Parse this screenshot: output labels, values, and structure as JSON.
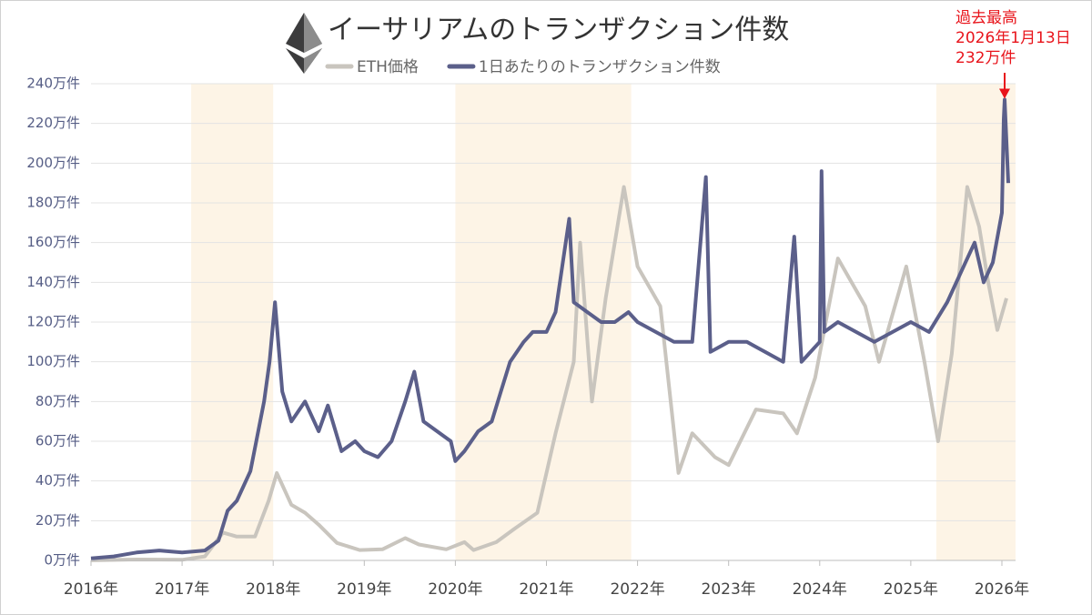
{
  "chart_data": {
    "type": "line",
    "title": "イーサリアムのトランザクション件数",
    "xlim": [
      2016,
      2026.15
    ],
    "xticks": [
      {
        "value": 2016,
        "label": "2016年"
      },
      {
        "value": 2017,
        "label": "2017年"
      },
      {
        "value": 2018,
        "label": "2018年"
      },
      {
        "value": 2019,
        "label": "2019年"
      },
      {
        "value": 2020,
        "label": "2020年"
      },
      {
        "value": 2021,
        "label": "2021年"
      },
      {
        "value": 2022,
        "label": "2022年"
      },
      {
        "value": 2023,
        "label": "2023年"
      },
      {
        "value": 2024,
        "label": "2024年"
      },
      {
        "value": 2025,
        "label": "2025年"
      },
      {
        "value": 2026,
        "label": "2026年"
      }
    ],
    "ylim": [
      0,
      240
    ],
    "yticks": [
      {
        "value": 0,
        "label": "0万件"
      },
      {
        "value": 20,
        "label": "20万件"
      },
      {
        "value": 40,
        "label": "40万件"
      },
      {
        "value": 60,
        "label": "60万件"
      },
      {
        "value": 80,
        "label": "80万件"
      },
      {
        "value": 100,
        "label": "100万件"
      },
      {
        "value": 120,
        "label": "120万件"
      },
      {
        "value": 140,
        "label": "140万件"
      },
      {
        "value": 160,
        "label": "160万件"
      },
      {
        "value": 180,
        "label": "180万件"
      },
      {
        "value": 200,
        "label": "200万件"
      },
      {
        "value": 220,
        "label": "220万件"
      },
      {
        "value": 240,
        "label": "240万件"
      }
    ],
    "y2lim": [
      0,
      6000
    ],
    "grid": true,
    "legend": "top",
    "shaded_ranges": [
      [
        2017.1,
        2018.0
      ],
      [
        2020.0,
        2021.93
      ],
      [
        2025.28,
        2026.15
      ]
    ],
    "shade_color": "#fdf4e6",
    "series": [
      {
        "name": "ETH価格",
        "color": "#c9c5be",
        "axis": "y2",
        "x": [
          2016.0,
          2016.5,
          2017.0,
          2017.25,
          2017.45,
          2017.6,
          2017.8,
          2017.95,
          2018.04,
          2018.2,
          2018.35,
          2018.5,
          2018.7,
          2018.95,
          2019.2,
          2019.45,
          2019.6,
          2019.9,
          2020.1,
          2020.2,
          2020.45,
          2020.65,
          2020.9,
          2021.1,
          2021.3,
          2021.37,
          2021.5,
          2021.65,
          2021.85,
          2022.0,
          2022.25,
          2022.45,
          2022.6,
          2022.85,
          2023.0,
          2023.3,
          2023.6,
          2023.75,
          2023.95,
          2024.2,
          2024.5,
          2024.65,
          2024.95,
          2025.15,
          2025.3,
          2025.45,
          2025.62,
          2025.75,
          2025.85,
          2025.95,
          2026.05
        ],
        "values": [
          1,
          12,
          8,
          50,
          350,
          300,
          300,
          750,
          1100,
          700,
          600,
          450,
          220,
          130,
          140,
          280,
          200,
          140,
          230,
          130,
          230,
          400,
          600,
          1600,
          2500,
          4000,
          2000,
          3300,
          4700,
          3700,
          3200,
          1100,
          1600,
          1300,
          1200,
          1900,
          1850,
          1600,
          2300,
          3800,
          3200,
          2500,
          3700,
          2500,
          1500,
          2600,
          4700,
          4200,
          3500,
          2900,
          3300
        ]
      },
      {
        "name": "1日あたりのトランザクション件数",
        "color": "#5b5f8a",
        "x": [
          2016.0,
          2016.25,
          2016.5,
          2016.75,
          2017.0,
          2017.25,
          2017.4,
          2017.5,
          2017.6,
          2017.75,
          2017.9,
          2017.96,
          2018.02,
          2018.1,
          2018.2,
          2018.35,
          2018.5,
          2018.6,
          2018.75,
          2018.9,
          2019.0,
          2019.15,
          2019.3,
          2019.45,
          2019.55,
          2019.65,
          2019.8,
          2019.95,
          2020.0,
          2020.1,
          2020.25,
          2020.4,
          2020.5,
          2020.6,
          2020.75,
          2020.85,
          2021.0,
          2021.1,
          2021.25,
          2021.3,
          2021.45,
          2021.6,
          2021.75,
          2021.9,
          2022.0,
          2022.2,
          2022.4,
          2022.6,
          2022.75,
          2022.8,
          2023.0,
          2023.2,
          2023.4,
          2023.6,
          2023.72,
          2023.8,
          2024.0,
          2024.02,
          2024.05,
          2024.2,
          2024.4,
          2024.6,
          2024.8,
          2025.0,
          2025.2,
          2025.4,
          2025.55,
          2025.7,
          2025.8,
          2025.9,
          2026.0,
          2026.02,
          2026.03,
          2026.07
        ],
        "values": [
          1,
          2,
          4,
          5,
          4,
          5,
          10,
          25,
          30,
          45,
          80,
          100,
          130,
          85,
          70,
          80,
          65,
          78,
          55,
          60,
          55,
          52,
          60,
          80,
          95,
          70,
          65,
          60,
          50,
          55,
          65,
          70,
          85,
          100,
          110,
          115,
          115,
          125,
          172,
          130,
          125,
          120,
          120,
          125,
          120,
          115,
          110,
          110,
          193,
          105,
          110,
          110,
          105,
          100,
          163,
          100,
          110,
          196,
          115,
          120,
          115,
          110,
          115,
          120,
          115,
          130,
          145,
          160,
          140,
          150,
          175,
          222,
          232,
          190
        ]
      }
    ],
    "annotation": [
      "過去最高",
      "2026年1月13日",
      "232万件"
    ],
    "annotation_color": "#e8141b"
  }
}
